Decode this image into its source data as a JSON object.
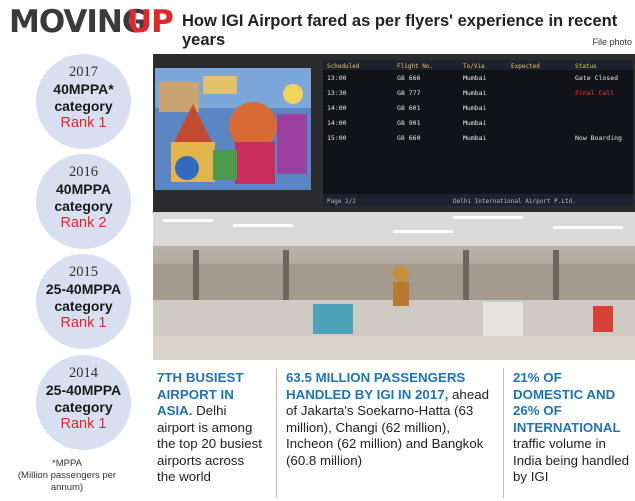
{
  "header": {
    "title_main": "MOVING",
    "title_accent": "UP",
    "subtitle": "How IGI Airport fared as per flyers' experience in recent years",
    "photo_credit": "File photo"
  },
  "rankings": [
    {
      "year": "2017",
      "category_line1": "40MPPA*",
      "category_line2": "category",
      "rank": "Rank 1"
    },
    {
      "year": "2016",
      "category_line1": "40MPPA",
      "category_line2": "category",
      "rank": "Rank 2"
    },
    {
      "year": "2015",
      "category_line1": "25-40MPPA",
      "category_line2": "category",
      "rank": "Rank 1"
    },
    {
      "year": "2014",
      "category_line1": "25-40MPPA",
      "category_line2": "category",
      "rank": "Rank 1"
    }
  ],
  "footnote": {
    "line1": "*MPPA",
    "line2": "(Million passengers per annum)"
  },
  "board": {
    "headers": [
      "Scheduled",
      "Flight No.",
      "To/Via",
      "Expected",
      "Status"
    ],
    "rows": [
      {
        "time": "13:00",
        "flight": "G8 666",
        "dest": "Mumbai",
        "status": "Gate Closed"
      },
      {
        "time": "13:30",
        "flight": "G8 777",
        "dest": "Mumbai",
        "status": "Final Call"
      },
      {
        "time": "14:00",
        "flight": "G8 601",
        "dest": "Mumbai",
        "status": ""
      },
      {
        "time": "14:00",
        "flight": "G8 901",
        "dest": "Mumbai",
        "status": ""
      },
      {
        "time": "15:00",
        "flight": "G8 660",
        "dest": "Mumbai",
        "status": "Now Boarding"
      }
    ],
    "footer_left": "Page 2/2",
    "footer_right": "Delhi International Airport P.Ltd."
  },
  "facts": [
    {
      "highlight": "7TH BUSIEST AIRPORT IN ASIA.",
      "body": " Delhi airport is among the top 20 busiest airports across the world"
    },
    {
      "highlight": "63.5 MILLION PASSENGERS HANDLED BY IGI IN 2017,",
      "body": " ahead of Jakarta's Soekarno-Hatta (63 million), Changi (62 million), Incheon (62 million) and Bangkok (60.8 million)"
    },
    {
      "highlight": "21% OF DOMESTIC AND 26% OF INTERNATIONAL",
      "body": " traffic volume in India being handled by IGI"
    }
  ],
  "colors": {
    "accent_red": "#e3262b",
    "highlight_blue": "#1e74b8",
    "circle_fill": "#d7dff0"
  }
}
